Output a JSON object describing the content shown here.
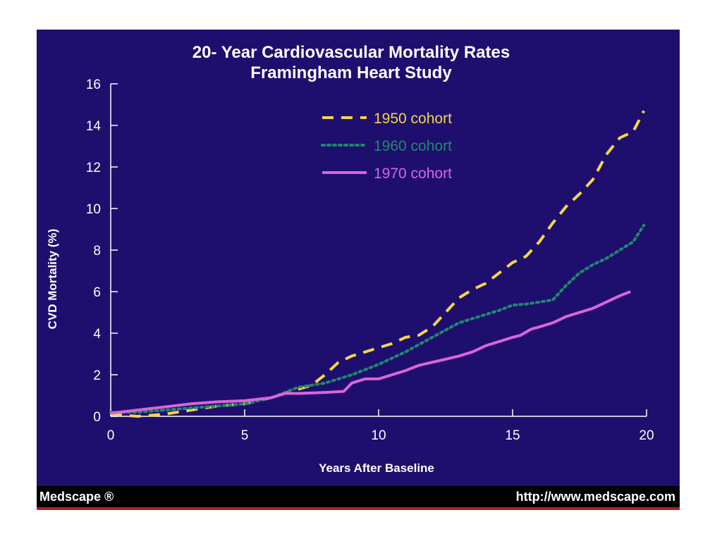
{
  "chart_data": {
    "type": "line",
    "title": "20- Year Cardiovascular Mortality Rates",
    "subtitle": "Framingham Heart Study",
    "xlabel": "Years After Baseline",
    "ylabel": "CVD Mortality (%)",
    "xlim": [
      0,
      20
    ],
    "ylim": [
      0,
      16
    ],
    "xticks": [
      0,
      5,
      10,
      15,
      20
    ],
    "yticks": [
      0,
      2,
      4,
      6,
      8,
      10,
      12,
      14,
      16
    ],
    "grid": false,
    "legend_position": "top-right",
    "background_color": "#1e0f6f",
    "series": [
      {
        "name": "1950 cohort",
        "color": "#f5d547",
        "style": "dashed",
        "points": [
          [
            0,
            0.1
          ],
          [
            1,
            0
          ],
          [
            2,
            0.1
          ],
          [
            3,
            0.3
          ],
          [
            4,
            0.5
          ],
          [
            5,
            0.6
          ],
          [
            6,
            0.9
          ],
          [
            7,
            1.3
          ],
          [
            7.5,
            1.5
          ],
          [
            8,
            2
          ],
          [
            8.5,
            2.6
          ],
          [
            9,
            2.9
          ],
          [
            9.5,
            3.1
          ],
          [
            10,
            3.3
          ],
          [
            10.5,
            3.5
          ],
          [
            11,
            3.8
          ],
          [
            11.5,
            3.9
          ],
          [
            12,
            4.3
          ],
          [
            12.5,
            5
          ],
          [
            13,
            5.7
          ],
          [
            13.5,
            6.1
          ],
          [
            14,
            6.4
          ],
          [
            14.5,
            6.9
          ],
          [
            15,
            7.4
          ],
          [
            15.5,
            7.7
          ],
          [
            16,
            8.4
          ],
          [
            16.5,
            9.3
          ],
          [
            17,
            10.1
          ],
          [
            17.5,
            10.7
          ],
          [
            18,
            11.4
          ],
          [
            18.5,
            12.6
          ],
          [
            19,
            13.4
          ],
          [
            19.5,
            13.7
          ],
          [
            19.9,
            14.7
          ]
        ]
      },
      {
        "name": "1960 cohort",
        "color": "#1f8a6a",
        "style": "dotted",
        "points": [
          [
            0,
            0.2
          ],
          [
            1,
            0.2
          ],
          [
            2,
            0.3
          ],
          [
            3,
            0.4
          ],
          [
            4,
            0.5
          ],
          [
            5,
            0.6
          ],
          [
            6,
            0.9
          ],
          [
            7,
            1.4
          ],
          [
            8,
            1.6
          ],
          [
            9,
            2
          ],
          [
            10,
            2.5
          ],
          [
            11,
            3.1
          ],
          [
            12,
            3.8
          ],
          [
            13,
            4.5
          ],
          [
            14,
            4.9
          ],
          [
            14.5,
            5.1
          ],
          [
            15,
            5.35
          ],
          [
            15.5,
            5.4
          ],
          [
            16,
            5.5
          ],
          [
            16.5,
            5.6
          ],
          [
            17,
            6.3
          ],
          [
            17.5,
            6.9
          ],
          [
            18,
            7.3
          ],
          [
            18.5,
            7.6
          ],
          [
            19,
            8
          ],
          [
            19.5,
            8.4
          ],
          [
            19.9,
            9.2
          ]
        ]
      },
      {
        "name": "1970 cohort",
        "color": "#d965d9",
        "style": "solid",
        "points": [
          [
            0,
            0.15
          ],
          [
            1,
            0.3
          ],
          [
            2,
            0.45
          ],
          [
            3,
            0.6
          ],
          [
            4,
            0.7
          ],
          [
            5,
            0.75
          ],
          [
            6,
            0.9
          ],
          [
            6.5,
            1.1
          ],
          [
            7,
            1.1
          ],
          [
            8,
            1.15
          ],
          [
            8.7,
            1.2
          ],
          [
            9,
            1.6
          ],
          [
            9.5,
            1.8
          ],
          [
            10,
            1.8
          ],
          [
            10.5,
            2.0
          ],
          [
            11,
            2.2
          ],
          [
            11.5,
            2.45
          ],
          [
            12,
            2.6
          ],
          [
            12.5,
            2.75
          ],
          [
            13,
            2.9
          ],
          [
            13.5,
            3.1
          ],
          [
            14,
            3.4
          ],
          [
            14.5,
            3.6
          ],
          [
            15,
            3.8
          ],
          [
            15.3,
            3.9
          ],
          [
            15.7,
            4.2
          ],
          [
            16,
            4.3
          ],
          [
            16.5,
            4.5
          ],
          [
            17,
            4.8
          ],
          [
            17.5,
            5.0
          ],
          [
            18,
            5.2
          ],
          [
            18.5,
            5.5
          ],
          [
            19,
            5.8
          ],
          [
            19.4,
            6.0
          ]
        ]
      }
    ]
  },
  "footer": {
    "left_text": "Medscape ®",
    "right_text": "http://www.medscape.com"
  }
}
